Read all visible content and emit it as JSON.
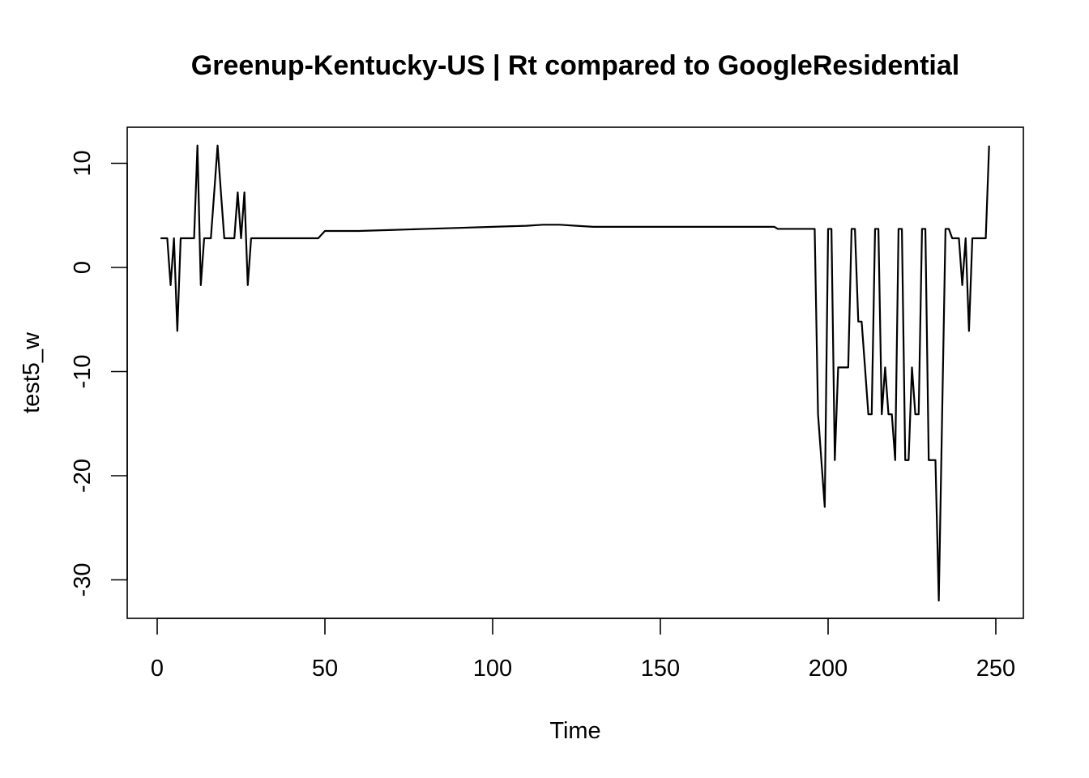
{
  "chart_data": {
    "type": "line",
    "title": "Greenup-Kentucky-US | Rt compared to GoogleResidential",
    "xlabel": "Time",
    "ylabel": "test5_w",
    "xlim": [
      0,
      250
    ],
    "ylim": [
      -32,
      12
    ],
    "x_ticks": [
      0,
      50,
      100,
      150,
      200,
      250
    ],
    "y_ticks": [
      -30,
      -20,
      -10,
      0,
      10
    ],
    "x_tick_labels": [
      "0",
      "50",
      "100",
      "150",
      "200",
      "250"
    ],
    "y_tick_labels": [
      "-30",
      "-20",
      "-10",
      "0",
      "10"
    ],
    "grid": false,
    "legend": "none",
    "line_color": "#000000",
    "series": [
      {
        "x": [
          1,
          2,
          3,
          4,
          5,
          6,
          7,
          8,
          9,
          10,
          11,
          12,
          13,
          14,
          15,
          16,
          17,
          18,
          19,
          20,
          21,
          22,
          23,
          24,
          25,
          26,
          27,
          28,
          29,
          30,
          35,
          40,
          45,
          48,
          50,
          55,
          60,
          70,
          80,
          90,
          100,
          110,
          115,
          120,
          125,
          130,
          140,
          150,
          160,
          170,
          180,
          184,
          185,
          190,
          195,
          196,
          197,
          199,
          200,
          201,
          202,
          203,
          204,
          205,
          206,
          207,
          208,
          209,
          210,
          211,
          212,
          213,
          214,
          215,
          216,
          217,
          218,
          219,
          220,
          221,
          222,
          223,
          224,
          225,
          226,
          227,
          228,
          229,
          230,
          231,
          232,
          233,
          234,
          235,
          236,
          237,
          238,
          239,
          240,
          241,
          242,
          243,
          244,
          245,
          246,
          247,
          248
        ],
        "y": [
          2.8,
          2.8,
          2.8,
          -1.7,
          2.8,
          -6.1,
          2.8,
          2.8,
          2.8,
          2.8,
          2.8,
          11.7,
          -1.7,
          2.8,
          2.8,
          2.8,
          7.2,
          11.7,
          7.2,
          2.8,
          2.8,
          2.8,
          2.8,
          7.2,
          2.8,
          7.2,
          -1.7,
          2.8,
          2.8,
          2.8,
          2.8,
          2.8,
          2.8,
          2.8,
          3.5,
          3.5,
          3.5,
          3.6,
          3.7,
          3.8,
          3.9,
          4.0,
          4.1,
          4.1,
          4.0,
          3.9,
          3.9,
          3.9,
          3.9,
          3.9,
          3.9,
          3.9,
          3.7,
          3.7,
          3.7,
          3.7,
          -14.1,
          -23.0,
          3.7,
          3.7,
          -18.5,
          -9.6,
          -9.6,
          -9.6,
          -9.6,
          3.7,
          3.7,
          -5.2,
          -5.2,
          -9.6,
          -14.1,
          -14.1,
          3.7,
          3.7,
          -14.1,
          -9.6,
          -14.1,
          -14.1,
          -18.5,
          3.7,
          3.7,
          -18.5,
          -18.5,
          -9.6,
          -14.1,
          -14.1,
          3.7,
          3.7,
          -18.5,
          -18.5,
          -18.5,
          -32.0,
          -14.1,
          3.7,
          3.7,
          2.8,
          2.8,
          2.8,
          -1.7,
          2.8,
          -6.1,
          2.8,
          2.8,
          2.8,
          2.8,
          2.8,
          11.7
        ]
      }
    ]
  }
}
